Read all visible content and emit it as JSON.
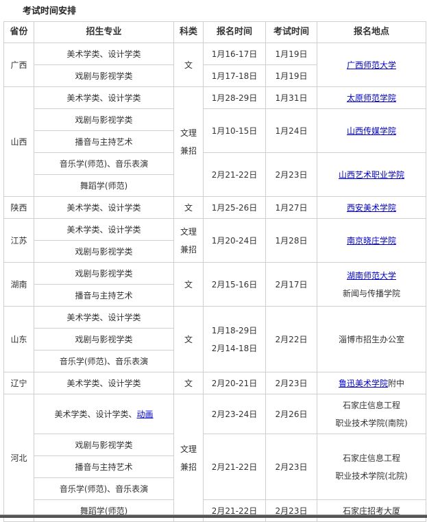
{
  "title": "考试时间安排",
  "header": [
    "省份",
    "招生专业",
    "科类",
    "报名时间",
    "考试时间",
    "报名地点"
  ],
  "colors": {
    "link": "#0000cc",
    "border": "#cfcfcf",
    "text": "#333333"
  },
  "guangxi": {
    "name": "广西",
    "majors": [
      "美术学类、设计学类",
      "戏剧与影视学类"
    ],
    "category": "文",
    "reg": [
      "1月16-17日",
      "1月17-18日"
    ],
    "exam": [
      "1月19日",
      "1月19日"
    ],
    "location": "广西师范大学"
  },
  "shanxi": {
    "name": "山西",
    "majors": [
      "美术学类、设计学类",
      "戏剧与影视学类",
      "播音与主持艺术",
      "音乐学(师范)、音乐表演",
      "舞蹈学(师范)"
    ],
    "category": [
      "文理",
      "兼招"
    ],
    "groups": [
      {
        "reg": "1月28-29日",
        "exam": "1月31日",
        "location": "太原师范学院"
      },
      {
        "reg": "1月10-15日",
        "exam": "1月24日",
        "location": "山西传媒学院"
      },
      {
        "reg": "2月21-22日",
        "exam": "2月23日",
        "location": "山西艺术职业学院"
      }
    ]
  },
  "shaanxi": {
    "name": "陕西",
    "majors": [
      "美术学类、设计学类"
    ],
    "category": "文",
    "reg": "1月25-26日",
    "exam": "1月27日",
    "location": "西安美术学院"
  },
  "jiangsu": {
    "name": "江苏",
    "majors": [
      "美术学类、设计学类",
      "戏剧与影视学类"
    ],
    "category": [
      "文理",
      "兼招"
    ],
    "reg": "1月20-24日",
    "exam": "1月28日",
    "location": "南京晓庄学院"
  },
  "hunan": {
    "name": "湖南",
    "majors": [
      "戏剧与影视学类",
      "播音与主持艺术"
    ],
    "category": "文",
    "reg": "2月15-16日",
    "exam": "2月17日",
    "location_link": "湖南师范大学",
    "location_sub": "新闻与传播学院"
  },
  "shandong": {
    "name": "山东",
    "majors": [
      "美术学类、设计学类",
      "戏剧与影视学类",
      "音乐学(师范)、音乐表演"
    ],
    "category": "文",
    "reg": [
      "1月18-29日",
      "2月14-18日"
    ],
    "exam": "2月22日",
    "location": "淄博市招生办公室"
  },
  "liaoning": {
    "name": "辽宁",
    "majors": [
      "美术学类、设计学类"
    ],
    "category": "文",
    "reg": "2月20-21日",
    "exam": "2月23日",
    "location_link": "鲁迅美术学院",
    "location_suffix": "附中"
  },
  "hebei": {
    "name": "河北",
    "major_first_prefix": "美术学类、设计学类、",
    "major_first_link": "动画",
    "majors": [
      "戏剧与影视学类",
      "播音与主持艺术",
      "音乐学(师范)、音乐表演",
      "舞蹈学(师范)"
    ],
    "category": [
      "文理",
      "兼招"
    ],
    "groups": [
      {
        "reg": "2月23-24日",
        "exam": "2月26日",
        "location": [
          "石家庄信息工程",
          "职业技术学院(南院)"
        ]
      },
      {
        "reg": "2月21-22日",
        "exam": "2月23日",
        "location": [
          "石家庄信息工程",
          "职业技术学院(北院)"
        ]
      },
      {
        "reg": "2月21-22日",
        "exam": "2月23日",
        "location": [
          "石家庄招考大厦"
        ]
      }
    ]
  }
}
